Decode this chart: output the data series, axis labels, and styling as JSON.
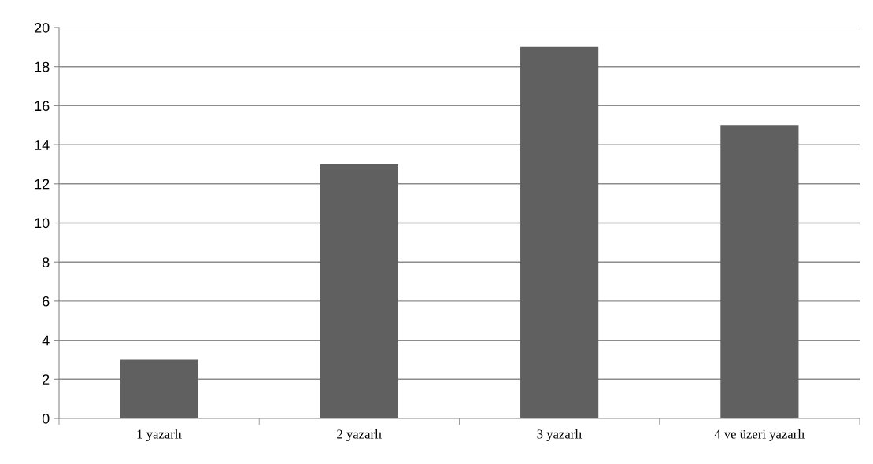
{
  "chart_data": {
    "type": "bar",
    "categories": [
      "1 yazarlı",
      "2 yazarlı",
      "3 yazarlı",
      "4 ve üzeri yazarlı"
    ],
    "values": [
      3,
      13,
      19,
      15
    ],
    "color": "#606060",
    "ylim": [
      0,
      20
    ],
    "yticks": [
      0,
      2,
      4,
      6,
      8,
      10,
      12,
      14,
      16,
      18,
      20
    ],
    "grid": "y",
    "legend": false
  }
}
